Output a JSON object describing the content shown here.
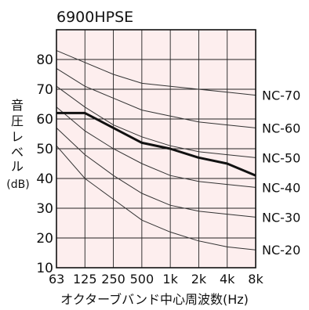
{
  "chart_data": {
    "type": "line",
    "title": "6900HPSE",
    "ylabel": "音圧レベル(dB)",
    "ylabel_lines": [
      "音",
      "圧",
      "レ",
      "ベ",
      "ル",
      "(dB)"
    ],
    "xlabel": "オクターブバンド中心周波数(Hz)",
    "categories": [
      "63",
      "125",
      "250",
      "500",
      "1k",
      "2k",
      "4k",
      "8k"
    ],
    "ylim": [
      10,
      90
    ],
    "yticks": [
      10,
      20,
      30,
      40,
      50,
      60,
      70,
      80
    ],
    "grid": true,
    "plot_bg": "#fdeeee",
    "series": [
      {
        "name": "6900HPSE",
        "values": [
          62,
          62,
          57,
          52,
          50,
          47,
          45,
          41
        ],
        "color": "#111111",
        "bold": true
      }
    ],
    "reference_curves": [
      {
        "name": "NC-70",
        "values": [
          83,
          79,
          75,
          72,
          71,
          70,
          69,
          68
        ]
      },
      {
        "name": "NC-60",
        "values": [
          77,
          71,
          67,
          63,
          61,
          59,
          58,
          57
        ]
      },
      {
        "name": "NC-50",
        "values": [
          71,
          64,
          58,
          54,
          51,
          49,
          48,
          47
        ]
      },
      {
        "name": "NC-40",
        "values": [
          64,
          56,
          50,
          45,
          41,
          39,
          38,
          37
        ]
      },
      {
        "name": "NC-30",
        "values": [
          57,
          48,
          41,
          35,
          31,
          29,
          28,
          27
        ]
      },
      {
        "name": "NC-20",
        "values": [
          51,
          40,
          33,
          26,
          22,
          19,
          17,
          16
        ]
      }
    ]
  }
}
